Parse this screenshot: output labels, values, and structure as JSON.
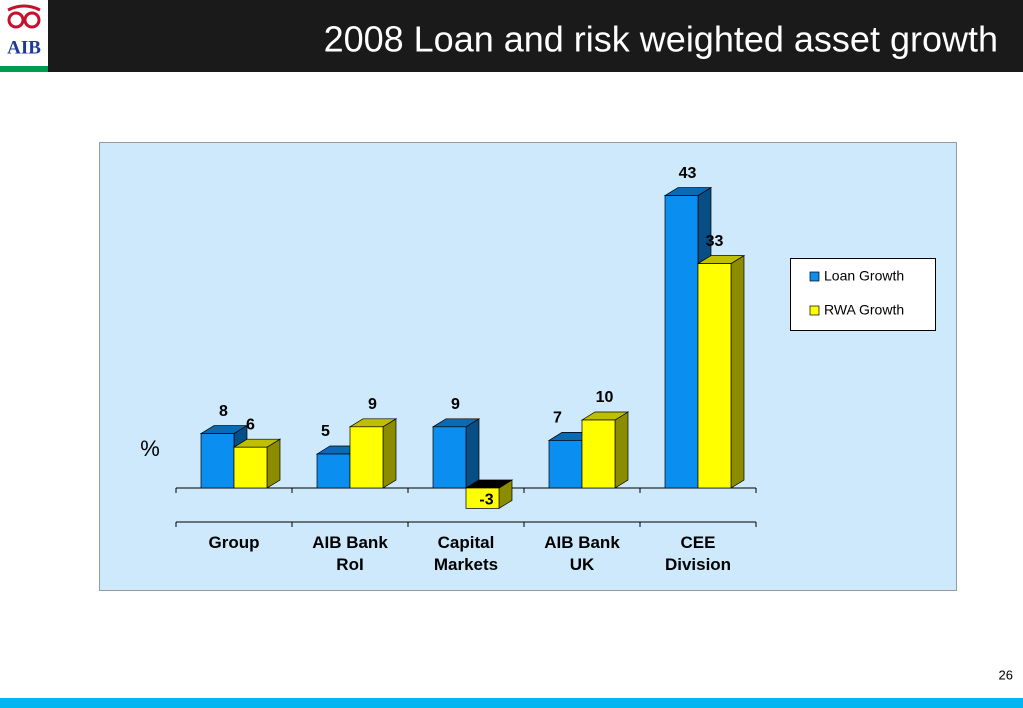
{
  "header": {
    "logo": "AIB",
    "title": "2008 Loan and risk weighted asset growth"
  },
  "chart_data": {
    "type": "bar3d",
    "y_label": "%",
    "categories": [
      "Group",
      "AIB Bank RoI",
      "Capital Markets",
      "AIB Bank UK",
      "CEE Division"
    ],
    "series": [
      {
        "name": "Loan Growth",
        "color": "#0a8ef0",
        "values": [
          8,
          5,
          9,
          7,
          43
        ]
      },
      {
        "name": "RWA Growth",
        "color": "#ffff00",
        "values": [
          6,
          9,
          -3,
          10,
          33
        ]
      }
    ],
    "legend": "right"
  },
  "footer": {
    "page": "26"
  }
}
